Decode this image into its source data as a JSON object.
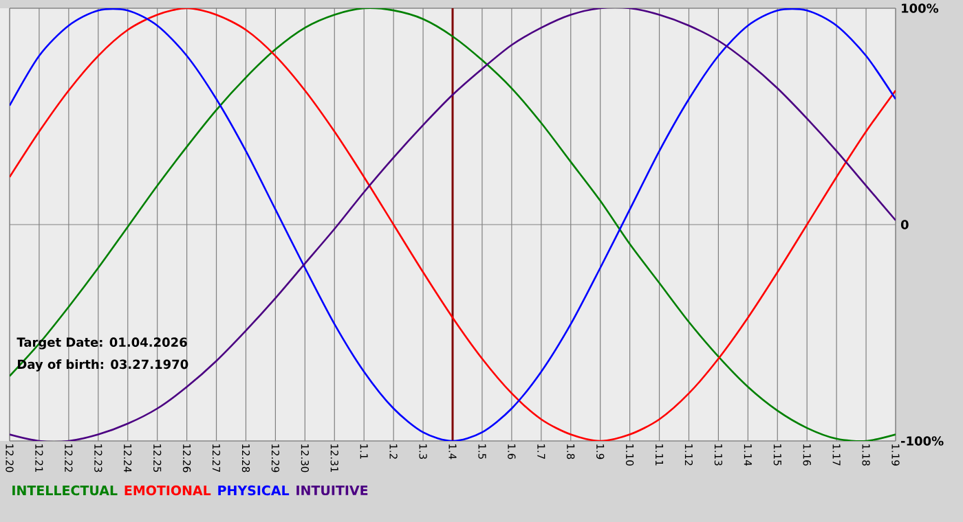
{
  "chart_data": {
    "type": "line",
    "categories": [
      "12.20",
      "12.21",
      "12.22",
      "12.23",
      "12.24",
      "12.25",
      "12.26",
      "12.27",
      "12.28",
      "12.29",
      "12.30",
      "12.31",
      "1.1",
      "1.2",
      "1.3",
      "1.4",
      "1.5",
      "1.6",
      "1.7",
      "1.8",
      "1.9",
      "1.10",
      "1.11",
      "1.12",
      "1.13",
      "1.14",
      "1.15",
      "1.16",
      "1.17",
      "1.18",
      "1.19"
    ],
    "series": [
      {
        "name": "INTELLECTUAL",
        "color": "#008000",
        "values": [
          -70,
          -55,
          -38,
          -20,
          -1,
          18,
          36,
          53,
          68,
          81,
          91,
          97,
          100,
          99,
          95,
          87,
          76,
          63,
          47,
          29,
          11,
          -9,
          -27,
          -45,
          -61,
          -75,
          -86,
          -94,
          -99,
          -100,
          -97
        ]
      },
      {
        "name": "EMOTIONAL",
        "color": "#ff0000",
        "values": [
          22,
          43,
          62,
          78,
          90,
          97,
          100,
          97,
          90,
          78,
          62,
          43,
          22,
          0,
          -22,
          -43,
          -62,
          -78,
          -90,
          -97,
          -100,
          -97,
          -90,
          -78,
          -62,
          -43,
          -22,
          0,
          22,
          43,
          62
        ]
      },
      {
        "name": "PHYSICAL",
        "color": "#0000ff",
        "values": [
          55,
          78,
          92,
          99,
          99,
          92,
          78,
          58,
          34,
          7,
          -20,
          -46,
          -68,
          -85,
          -96,
          -100,
          -96,
          -85,
          -68,
          -46,
          -20,
          7,
          34,
          58,
          78,
          92,
          99,
          99,
          92,
          78,
          58
        ]
      },
      {
        "name": "INTUITIVE",
        "color": "#4b0082",
        "values": [
          -97,
          -100,
          -100,
          -97,
          -92,
          -85,
          -75,
          -63,
          -49,
          -34,
          -18,
          -2,
          15,
          31,
          46,
          60,
          72,
          83,
          91,
          97,
          100,
          100,
          97,
          92,
          85,
          75,
          63,
          49,
          34,
          18,
          2
        ]
      }
    ],
    "ylim": [
      -100,
      100
    ],
    "yticks": [
      {
        "value": -100,
        "label": "-100%"
      },
      0,
      {
        "value": 100,
        "label": "100%"
      }
    ],
    "grid": true,
    "legend": "bottom left",
    "ref_lines": [
      {
        "axis": "x",
        "value": "1.4",
        "color": "#800000"
      }
    ],
    "annotations": [
      "Target Date: 01.04.2026",
      "Day of birth: 03.27.1970"
    ]
  }
}
